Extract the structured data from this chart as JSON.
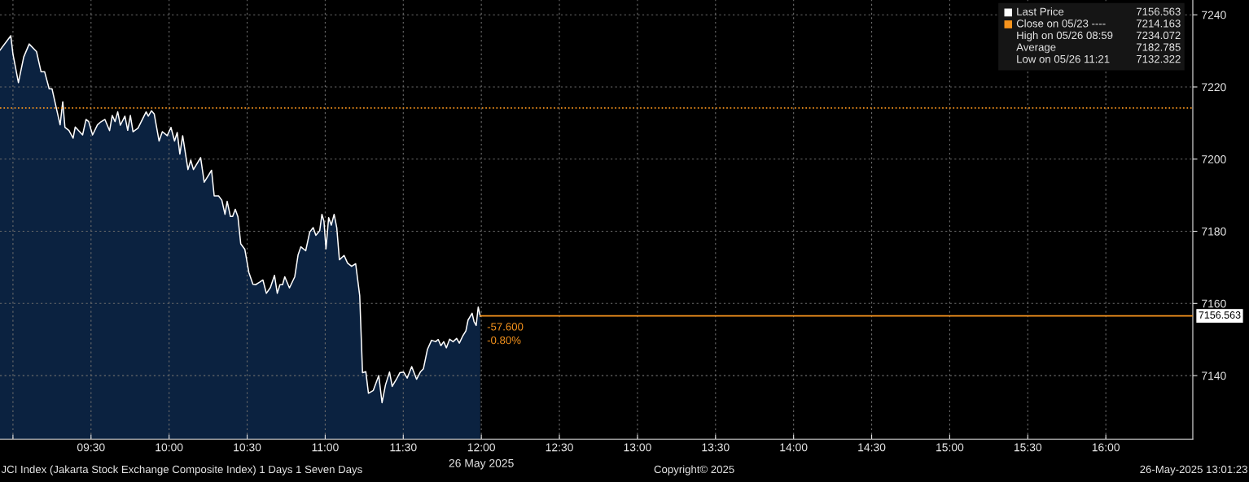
{
  "chart_data": {
    "type": "area",
    "xlabel": "26 May 2025",
    "xlim": [
      8.917,
      16.557
    ],
    "xticks": [
      {
        "value": 9.0,
        "label": null
      },
      {
        "value": 9.5,
        "label": "09:30"
      },
      {
        "value": 10.0,
        "label": "10:00"
      },
      {
        "value": 10.5,
        "label": "10:30"
      },
      {
        "value": 11.0,
        "label": "11:00"
      },
      {
        "value": 11.5,
        "label": "11:30"
      },
      {
        "value": 12.0,
        "label": "12:00"
      },
      {
        "value": 12.5,
        "label": "12:30"
      },
      {
        "value": 13.0,
        "label": "13:00"
      },
      {
        "value": 13.5,
        "label": "13:30"
      },
      {
        "value": 14.0,
        "label": "14:00"
      },
      {
        "value": 14.5,
        "label": "14:30"
      },
      {
        "value": 15.0,
        "label": "15:00"
      },
      {
        "value": 15.5,
        "label": "15:30"
      },
      {
        "value": 16.0,
        "label": "16:00"
      }
    ],
    "ylim": [
      7122.4,
      7244.1
    ],
    "yticks": [
      7140,
      7160,
      7180,
      7200,
      7220,
      7240
    ],
    "grid": true,
    "legend": "top right",
    "series": [
      {
        "name": "Last Price",
        "color": "#ffffff",
        "x": [
          8.917,
          8.986,
          9.0,
          9.035,
          9.069,
          9.104,
          9.151,
          9.18,
          9.203,
          9.232,
          9.25,
          9.302,
          9.319,
          9.333,
          9.359,
          9.385,
          9.399,
          9.446,
          9.468,
          9.485,
          9.51,
          9.541,
          9.562,
          9.589,
          9.619,
          9.636,
          9.654,
          9.671,
          9.688,
          9.717,
          9.735,
          9.752,
          9.769,
          9.801,
          9.853,
          9.867,
          9.887,
          9.905,
          9.936,
          9.957,
          9.988,
          10.012,
          10.035,
          10.052,
          10.069,
          10.087,
          10.121,
          10.139,
          10.156,
          10.202,
          10.225,
          10.272,
          10.289,
          10.317,
          10.338,
          10.358,
          10.372,
          10.393,
          10.407,
          10.424,
          10.441,
          10.459,
          10.485,
          10.511,
          10.537,
          10.554,
          10.58,
          10.601,
          10.623,
          10.649,
          10.675,
          10.693,
          10.71,
          10.727,
          10.741,
          10.771,
          10.805,
          10.826,
          10.844,
          10.875,
          10.901,
          10.923,
          10.94,
          10.965,
          10.979,
          10.992,
          11.005,
          11.022,
          11.039,
          11.057,
          11.074,
          11.091,
          11.121,
          11.143,
          11.169,
          11.195,
          11.221,
          11.239,
          11.26,
          11.277,
          11.308,
          11.343,
          11.364,
          11.386,
          11.412,
          11.429,
          11.455,
          11.478,
          11.502,
          11.525,
          11.554,
          11.585,
          11.611,
          11.629,
          11.655,
          11.681,
          11.707,
          11.724,
          11.741,
          11.759,
          11.776,
          11.797,
          11.819,
          11.842,
          11.859,
          11.88,
          11.901,
          11.915,
          11.941,
          11.953,
          11.967,
          11.98,
          11.993
        ],
        "values": [
          7230.2,
          7234.2,
          7229.1,
          7221.2,
          7228.3,
          7231.9,
          7229.8,
          7224.2,
          7224.2,
          7219.5,
          7219.5,
          7209.5,
          7215.9,
          7208.8,
          7207.9,
          7205.8,
          7208.9,
          7206.7,
          7211.0,
          7210.4,
          7206.7,
          7209.5,
          7210.3,
          7211.0,
          7207.9,
          7212.1,
          7210.4,
          7213.1,
          7209.4,
          7211.9,
          7208.0,
          7212.1,
          7207.6,
          7208.6,
          7213.1,
          7211.9,
          7213.4,
          7212.5,
          7205.0,
          7207.6,
          7206.5,
          7208.8,
          7205.0,
          7207.4,
          7201.4,
          7206.5,
          7197.1,
          7199.7,
          7197.1,
          7200.4,
          7193.6,
          7196.9,
          7189.8,
          7189.8,
          7188.6,
          7184.7,
          7188.3,
          7184.1,
          7184.1,
          7186.1,
          7184.0,
          7176.5,
          7175.0,
          7168.6,
          7165.3,
          7165.2,
          7165.9,
          7166.5,
          7162.8,
          7164.4,
          7167.8,
          7162.8,
          7165.2,
          7165.2,
          7167.4,
          7164.3,
          7167.4,
          7173.4,
          7175.7,
          7174.6,
          7179.8,
          7181.0,
          7178.9,
          7180.2,
          7184.7,
          7182.8,
          7175.1,
          7183.8,
          7181.7,
          7184.7,
          7181.0,
          7172.1,
          7173.3,
          7171.2,
          7170.3,
          7171.0,
          7162.2,
          7140.8,
          7141.1,
          7135.1,
          7135.9,
          7140.0,
          7132.5,
          7137.4,
          7141.0,
          7137.0,
          7138.9,
          7140.8,
          7141.0,
          7139.3,
          7142.5,
          7139.0,
          7141.1,
          7141.9,
          7147.3,
          7149.8,
          7149.4,
          7150.0,
          7148.3,
          7149.4,
          7147.7,
          7150.1,
          7149.4,
          7150.3,
          7149.0,
          7150.9,
          7152.4,
          7155.4,
          7157.3,
          7155.0,
          7153.9,
          7159.0,
          7156.5
        ]
      }
    ],
    "ref_lines": [
      {
        "axis": "y",
        "value": 7214.163,
        "label": "Close on 05/23 ---- 7214.163",
        "color": "#f7941d",
        "line_style": "dotted"
      },
      {
        "axis": "y",
        "value": 7156.563,
        "label": "7156.563",
        "color": "#f7941d",
        "line_style": "solid"
      }
    ],
    "annotations": [
      "High on 05/26 08:59 7234.072",
      "Average 7182.785",
      "Low on 05/26 11:21 7132.322",
      {
        "text": "-57.600",
        "x": 11.993,
        "y": 7156.563
      },
      {
        "text": "-0.80%",
        "x": 11.993,
        "y": 7156.563
      },
      "JCI Index (Jakarta Stock Exchange Composite Index) 1 Days 1 Seven Days",
      "Copyright© 2025",
      "26-May-2025 13:01:23"
    ]
  }
}
